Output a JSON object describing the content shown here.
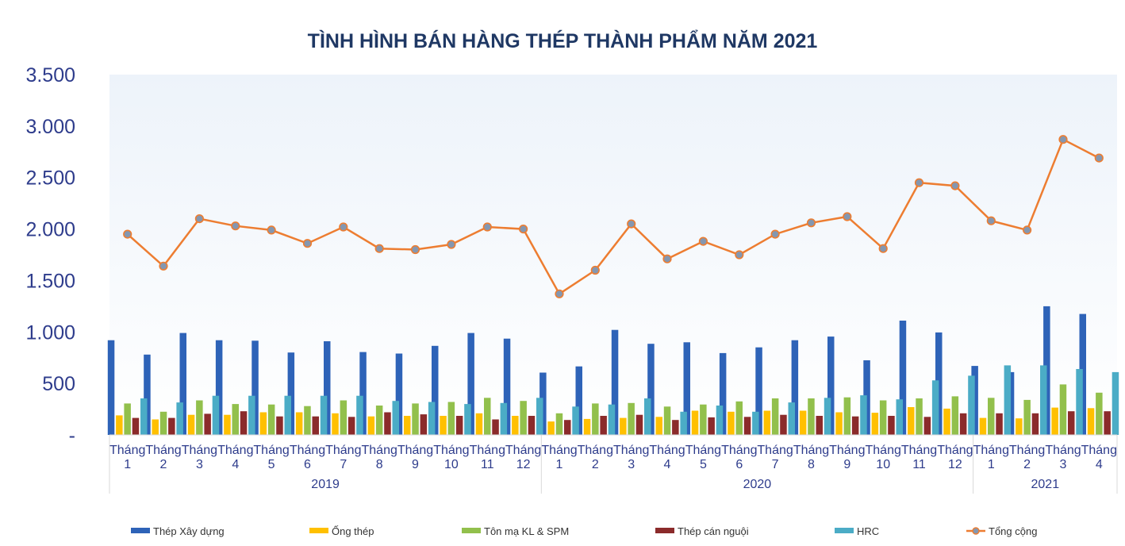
{
  "chart_data": {
    "type": "bar",
    "title": "TÌNH HÌNH BÁN HÀNG THÉP THÀNH PHẨM NĂM 2021",
    "xlabel": "",
    "ylabel": "",
    "ylim": [
      0,
      3500
    ],
    "yticks": [
      {
        "value": 0,
        "label": "-"
      },
      {
        "value": 500,
        "label": "500"
      },
      {
        "value": 1000,
        "label": "1.000"
      },
      {
        "value": 1500,
        "label": "1.500"
      },
      {
        "value": 2000,
        "label": "2.000"
      },
      {
        "value": 2500,
        "label": "2.500"
      },
      {
        "value": 3000,
        "label": "3.000"
      },
      {
        "value": 3500,
        "label": "3.500"
      }
    ],
    "month_word": "Tháng",
    "categories": [
      "1",
      "2",
      "3",
      "4",
      "5",
      "6",
      "7",
      "8",
      "9",
      "10",
      "11",
      "12",
      "1",
      "2",
      "3",
      "4",
      "5",
      "6",
      "7",
      "8",
      "9",
      "10",
      "11",
      "12",
      "1",
      "2",
      "3",
      "4"
    ],
    "groups": [
      {
        "label": "2019",
        "count": 12
      },
      {
        "label": "2020",
        "count": 12
      },
      {
        "label": "2021",
        "count": 4
      }
    ],
    "grid": false,
    "legend_position": "bottom",
    "series": [
      {
        "name": "Thép Xây dựng",
        "kind": "bar",
        "color": "#2e63b8",
        "values": [
          920,
          780,
          990,
          920,
          915,
          800,
          910,
          805,
          790,
          865,
          990,
          935,
          605,
          665,
          1020,
          885,
          900,
          795,
          850,
          920,
          955,
          725,
          1110,
          995,
          670,
          610,
          1250,
          1175
        ]
      },
      {
        "name": "Ống thép",
        "kind": "bar",
        "color": "#ffc000",
        "values": [
          190,
          150,
          195,
          195,
          220,
          220,
          210,
          180,
          185,
          185,
          210,
          185,
          130,
          155,
          165,
          175,
          235,
          225,
          235,
          235,
          220,
          215,
          270,
          255,
          165,
          160,
          265,
          260
        ]
      },
      {
        "name": "Tôn mạ KL & SPM",
        "kind": "bar",
        "color": "#92c04c",
        "values": [
          305,
          225,
          335,
          300,
          295,
          280,
          335,
          285,
          305,
          320,
          360,
          330,
          210,
          305,
          310,
          275,
          295,
          325,
          355,
          355,
          365,
          335,
          355,
          375,
          360,
          340,
          490,
          410
        ]
      },
      {
        "name": "Thép cán nguội",
        "kind": "bar",
        "color": "#8b2b2b",
        "values": [
          165,
          165,
          205,
          230,
          180,
          180,
          175,
          220,
          200,
          185,
          150,
          185,
          145,
          185,
          195,
          145,
          170,
          175,
          195,
          185,
          180,
          185,
          175,
          210,
          210,
          210,
          230,
          230
        ]
      },
      {
        "name": "HRC",
        "kind": "bar",
        "color": "#4bacc6",
        "values": [
          355,
          315,
          380,
          380,
          380,
          380,
          380,
          330,
          320,
          300,
          310,
          360,
          275,
          295,
          355,
          225,
          285,
          225,
          315,
          360,
          385,
          345,
          530,
          575,
          675,
          675,
          640,
          610
        ]
      },
      {
        "name": "Tổng cộng",
        "kind": "line",
        "color": "#ed7d31",
        "values": [
          1950,
          1640,
          2100,
          2030,
          1990,
          1860,
          2020,
          1810,
          1800,
          1850,
          2020,
          2000,
          1370,
          1600,
          2050,
          1710,
          1880,
          1750,
          1950,
          2060,
          2120,
          1810,
          2450,
          2420,
          2080,
          1990,
          2870,
          2690
        ]
      }
    ]
  }
}
